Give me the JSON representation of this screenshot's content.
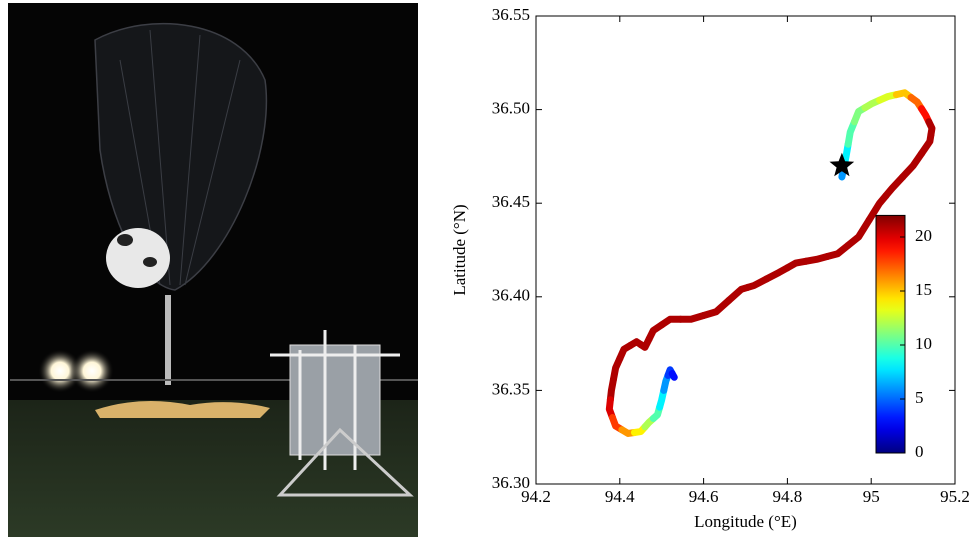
{
  "chart_data": {
    "type": "line",
    "xlabel": "Longitude (°E)",
    "ylabel": "Latitude (°N)",
    "xlim": [
      94.2,
      95.2
    ],
    "xticks": [
      94.2,
      94.4,
      94.6,
      94.8,
      95,
      {
        "value": 95.2,
        "label": "95.2"
      }
    ],
    "ylim": [
      36.3,
      36.55
    ],
    "yticks": [
      {
        "value": 36.3,
        "label": "36.30"
      },
      36.35,
      {
        "value": 36.4,
        "label": "36.40"
      },
      36.45,
      {
        "value": 36.5,
        "label": "36.50"
      },
      36.55
    ],
    "colormap": "jet",
    "clim": [
      0,
      22
    ],
    "cticks": [
      0,
      5,
      10,
      15,
      20
    ],
    "series": [
      {
        "x": [
          94.93,
          94.94,
          94.95,
          94.97,
          95.0,
          95.04,
          95.08,
          95.11,
          95.13,
          95.145,
          95.14,
          95.1,
          95.05,
          95.02,
          94.97,
          94.92,
          94.87,
          94.82,
          94.78,
          94.72,
          94.69,
          94.63,
          94.57,
          94.52,
          94.48,
          94.46,
          94.44,
          94.41,
          94.39,
          94.38,
          94.375,
          94.39,
          94.42,
          94.45,
          94.47,
          94.49,
          94.5,
          94.51,
          94.52,
          94.53
        ],
        "y": [
          36.464,
          36.475,
          36.488,
          36.499,
          36.503,
          36.507,
          36.509,
          36.504,
          36.497,
          36.49,
          36.483,
          36.47,
          36.458,
          36.45,
          36.432,
          36.423,
          36.42,
          36.418,
          36.413,
          36.406,
          36.404,
          36.392,
          36.388,
          36.388,
          36.382,
          36.373,
          36.376,
          36.372,
          36.362,
          36.35,
          36.34,
          36.331,
          36.327,
          36.328,
          36.333,
          36.337,
          36.345,
          36.355,
          36.361,
          36.357
        ],
        "c": [
          6,
          8,
          10,
          11,
          12,
          13,
          15,
          17,
          19,
          21,
          21,
          21,
          21,
          21,
          21,
          21,
          21,
          21,
          21,
          21,
          21,
          21,
          21,
          21,
          21,
          21,
          21,
          21,
          21,
          21,
          20,
          18,
          16,
          14,
          12,
          10,
          8,
          6,
          4,
          3
        ]
      }
    ],
    "marker_x": 94.93,
    "marker_y": 36.47
  }
}
